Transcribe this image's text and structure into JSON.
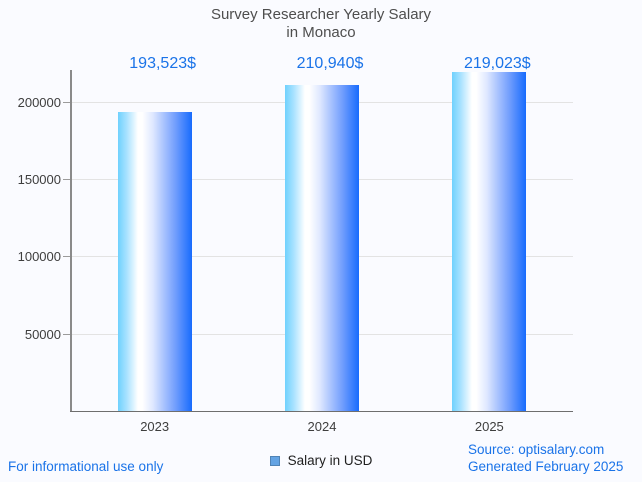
{
  "chart_data": {
    "type": "bar",
    "title": "Survey Researcher Yearly Salary in Monaco",
    "title_lines": [
      "Survey Researcher Yearly Salary",
      "in Monaco"
    ],
    "categories": [
      "2023",
      "2024",
      "2025"
    ],
    "series": [
      {
        "name": "Salary in USD",
        "values": [
          193523,
          210940,
          219023
        ],
        "value_labels": [
          "193,523$",
          "210,940$",
          "219,023$"
        ]
      }
    ],
    "xlabel": "",
    "ylabel": "",
    "ylim": [
      0,
      220500
    ],
    "yticks": [
      50000,
      100000,
      150000,
      200000
    ],
    "ytick_labels": [
      "50000",
      "100000",
      "150000",
      "200000"
    ],
    "grid": true,
    "legend_position": "bottom",
    "colors": {
      "background": "#fafbff",
      "title_text": "#4e4e4e",
      "axis_label_text": "#3e3e3e",
      "axis_line": "#8a8a8a",
      "gridline": "#e3e3e3",
      "value_label_text": "#1a73e8",
      "footer_link_text": "#1a73e8",
      "bar_gradient_left": "#6fd1fe",
      "bar_gradient_middle": "#ffffff",
      "bar_gradient_right": "#176bfd",
      "legend_swatch_fill": "#63a3e3",
      "legend_swatch_border": "#4f83b5"
    }
  },
  "footer": {
    "disclaimer": "For informational use only",
    "source": "Source: optisalary.com",
    "generated": "Generated February 2025"
  }
}
